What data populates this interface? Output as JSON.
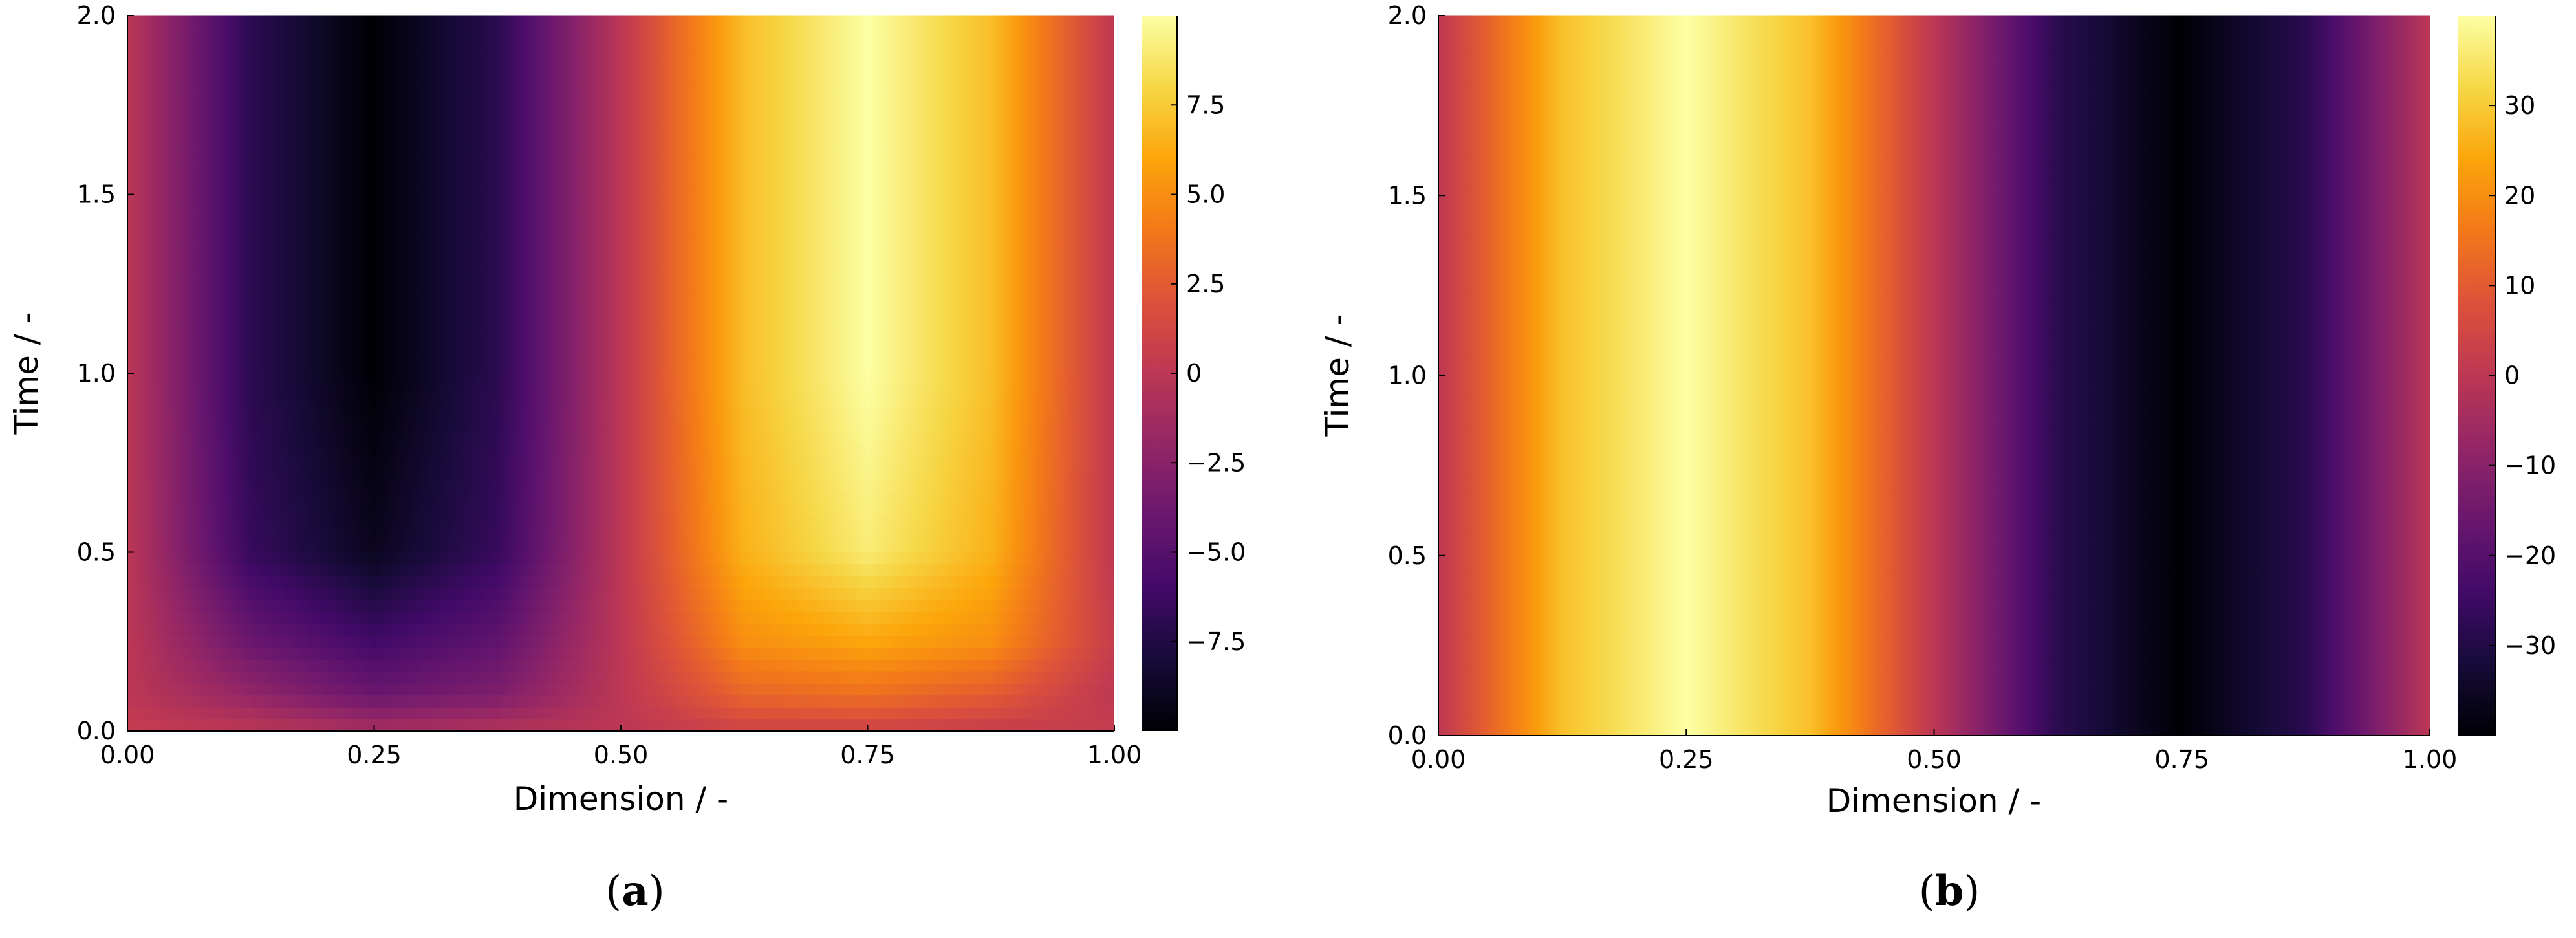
{
  "chart_data": [
    {
      "type": "heatmap",
      "panel": "(a)",
      "xlabel": "Dimension / -",
      "ylabel": "Time / -",
      "xlim": [
        0,
        1
      ],
      "ylim": [
        0,
        2.0
      ],
      "x_ticks": [
        "0.00",
        "0.25",
        "0.50",
        "0.75",
        "1.00"
      ],
      "y_ticks": [
        "0.0",
        "0.5",
        "1.0",
        "1.5",
        "2.0"
      ],
      "colormap": "inferno",
      "colorbar": {
        "min": -10,
        "max": 10,
        "ticks": [
          "−7.5",
          "−5.0",
          "−2.5",
          "0",
          "2.5",
          "5.0",
          "7.5"
        ]
      },
      "description_values": {
        "x": [
          0.0,
          0.125,
          0.25,
          0.375,
          0.5,
          0.625,
          0.75,
          0.875,
          1.0
        ],
        "y": [
          0.0,
          0.1,
          0.25,
          0.5,
          1.0,
          1.5,
          2.0
        ],
        "z": [
          [
            0.5,
            0.0,
            -1.0,
            -0.5,
            0.0,
            1.0,
            1.0,
            0.5,
            0.5
          ],
          [
            0.0,
            -2.0,
            -4.0,
            -3.0,
            0.0,
            3.0,
            3.5,
            2.5,
            0.0
          ],
          [
            0.0,
            -4.0,
            -6.0,
            -4.5,
            0.0,
            5.0,
            6.0,
            5.0,
            0.5
          ],
          [
            0.0,
            -6.5,
            -9.0,
            -6.5,
            0.0,
            6.5,
            9.0,
            6.5,
            0.0
          ],
          [
            0.0,
            -7.0,
            -10.0,
            -7.0,
            0.0,
            7.0,
            10.0,
            7.0,
            0.0
          ],
          [
            0.0,
            -7.0,
            -10.0,
            -7.0,
            0.0,
            7.0,
            10.0,
            7.0,
            0.0
          ],
          [
            0.0,
            -7.0,
            -10.0,
            -7.0,
            0.0,
            7.0,
            10.0,
            7.0,
            0.0
          ]
        ]
      }
    },
    {
      "type": "heatmap",
      "panel": "(b)",
      "xlabel": "Dimension / -",
      "ylabel": "Time / -",
      "xlim": [
        0,
        1
      ],
      "ylim": [
        0,
        2.0
      ],
      "x_ticks": [
        "0.00",
        "0.25",
        "0.50",
        "0.75",
        "1.00"
      ],
      "y_ticks": [
        "0.0",
        "0.5",
        "1.0",
        "1.5",
        "2.0"
      ],
      "colormap": "inferno",
      "colorbar": {
        "min": -40,
        "max": 40,
        "ticks": [
          "−30",
          "−20",
          "−10",
          "0",
          "10",
          "20",
          "30"
        ]
      },
      "description_values": {
        "x": [
          0.0,
          0.125,
          0.25,
          0.375,
          0.5,
          0.625,
          0.75,
          0.875,
          1.0
        ],
        "y": [
          0.0,
          2.0
        ],
        "z": [
          [
            0.0,
            28.3,
            40.0,
            28.3,
            0.0,
            -28.3,
            -40.0,
            -28.3,
            0.0
          ],
          [
            0.0,
            28.3,
            40.0,
            28.3,
            0.0,
            -28.3,
            -40.0,
            -28.3,
            0.0
          ]
        ]
      }
    }
  ],
  "panel_labels": {
    "a": "a",
    "b": "b"
  }
}
